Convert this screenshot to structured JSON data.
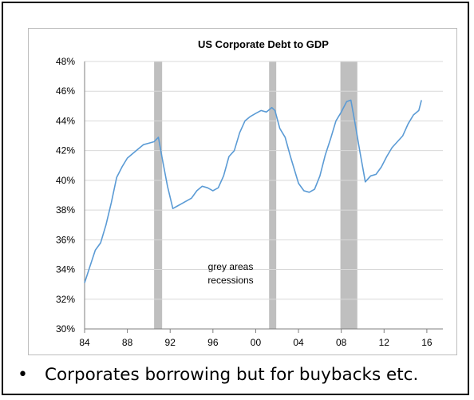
{
  "bullet": {
    "marker": "•",
    "text": "Corporates borrowing but for buybacks etc."
  },
  "chart_data": {
    "type": "line",
    "title": "US Corporate Debt to GDP",
    "xlabel": "",
    "ylabel": "",
    "xlim": [
      1984,
      2017.5
    ],
    "ylim": [
      30,
      48
    ],
    "x_ticks": [
      1984,
      1988,
      1992,
      1996,
      2000,
      2004,
      2008,
      2012,
      2016
    ],
    "x_tick_labels": [
      "84",
      "88",
      "92",
      "96",
      "00",
      "04",
      "08",
      "12",
      "16"
    ],
    "y_ticks": [
      30,
      32,
      34,
      36,
      38,
      40,
      42,
      44,
      46,
      48
    ],
    "y_tick_labels": [
      "30%",
      "32%",
      "34%",
      "36%",
      "38%",
      "40%",
      "42%",
      "44%",
      "46%",
      "48%"
    ],
    "grid": "horizontal",
    "line_color": "#5b9bd5",
    "recession_color": "#bfbfbf",
    "recessions": [
      [
        1990.5,
        1991.25
      ],
      [
        2001.25,
        2001.92
      ],
      [
        2007.92,
        2009.5
      ]
    ],
    "annotation": [
      "grey areas",
      "recessions"
    ],
    "series": [
      {
        "name": "",
        "x": [
          1984.0,
          1984.5,
          1985.0,
          1985.5,
          1986.0,
          1986.5,
          1987.0,
          1987.5,
          1988.0,
          1988.5,
          1989.0,
          1989.5,
          1990.0,
          1990.5,
          1990.9,
          1991.25,
          1991.75,
          1992.25,
          1992.75,
          1993.0,
          1993.5,
          1994.0,
          1994.5,
          1995.0,
          1995.5,
          1996.0,
          1996.5,
          1997.0,
          1997.5,
          1998.0,
          1998.5,
          1999.0,
          1999.5,
          2000.0,
          2000.5,
          2001.0,
          2001.5,
          2001.8,
          2002.25,
          2002.75,
          2003.25,
          2003.75,
          2004.0,
          2004.5,
          2005.0,
          2005.5,
          2006.0,
          2006.5,
          2007.0,
          2007.5,
          2008.0,
          2008.5,
          2008.9,
          2009.25,
          2009.75,
          2010.25,
          2010.75,
          2011.25,
          2011.75,
          2012.25,
          2012.75,
          2013.25,
          2013.75,
          2014.25,
          2014.75,
          2015.25,
          2015.5
        ],
        "y": [
          33.1,
          34.2,
          35.3,
          35.8,
          37.0,
          38.5,
          40.2,
          40.9,
          41.5,
          41.8,
          42.1,
          42.4,
          42.5,
          42.6,
          42.9,
          41.5,
          39.6,
          38.1,
          38.3,
          38.4,
          38.6,
          38.8,
          39.3,
          39.6,
          39.5,
          39.3,
          39.5,
          40.3,
          41.6,
          42.0,
          43.2,
          44.0,
          44.3,
          44.5,
          44.7,
          44.6,
          44.9,
          44.7,
          43.5,
          42.9,
          41.6,
          40.4,
          39.8,
          39.3,
          39.2,
          39.4,
          40.3,
          41.7,
          42.8,
          44.0,
          44.6,
          45.3,
          45.4,
          44.0,
          41.9,
          39.9,
          40.3,
          40.4,
          40.9,
          41.6,
          42.2,
          42.6,
          43.0,
          43.8,
          44.4,
          44.7,
          45.4
        ]
      }
    ]
  }
}
